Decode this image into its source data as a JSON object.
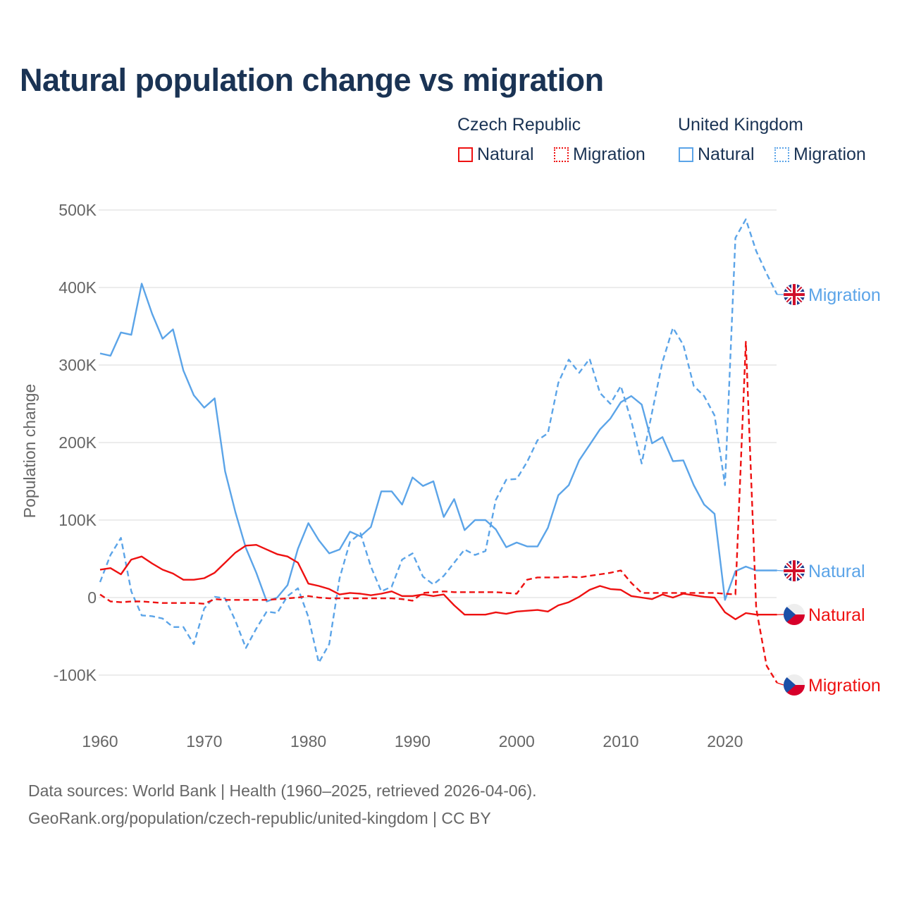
{
  "chart_data": {
    "type": "line",
    "title": "Natural population change vs migration",
    "xlabel": "",
    "ylabel": "Population change",
    "xlim": [
      1960,
      2025
    ],
    "ylim": [
      -100000,
      500000
    ],
    "x_ticks": [
      "1960",
      "1970",
      "1980",
      "1990",
      "2000",
      "2010",
      "2020"
    ],
    "y_ticks": [
      "500K",
      "400K",
      "300K",
      "200K",
      "100K",
      "0",
      "-100K"
    ],
    "grid": true,
    "legend": {
      "placement": "top-right",
      "groups": [
        {
          "name": "Czech Republic",
          "items": [
            "Natural",
            "Migration"
          ]
        },
        {
          "name": "United Kingdom",
          "items": [
            "Natural",
            "Migration"
          ]
        }
      ]
    },
    "x_start": 1960,
    "series": [
      {
        "name": "United Kingdom Natural",
        "label": "Natural",
        "country": "United Kingdom",
        "color": "#5ba4e8",
        "dashed": false,
        "values_k": [
          315,
          312,
          342,
          339,
          405,
          366,
          334,
          346,
          293,
          261,
          245,
          257,
          163,
          110,
          64,
          32,
          -5,
          0,
          16,
          63,
          96,
          74,
          57,
          62,
          85,
          79,
          91,
          137,
          137,
          120,
          155,
          144,
          150,
          104,
          127,
          87,
          100,
          100,
          88,
          65,
          71,
          66,
          66,
          90,
          132,
          145,
          177,
          197,
          217,
          231,
          252,
          260,
          249,
          199,
          207,
          176,
          177,
          145,
          120,
          108,
          -3,
          34,
          40,
          35,
          35,
          35
        ]
      },
      {
        "name": "United Kingdom Migration",
        "label": "Migration",
        "country": "United Kingdom",
        "color": "#5ba4e8",
        "dashed": true,
        "values_k": [
          20,
          55,
          77,
          8,
          -23,
          -24,
          -27,
          -38,
          -38,
          -60,
          -14,
          1,
          -1,
          -30,
          -65,
          -40,
          -18,
          -20,
          2,
          12,
          -25,
          -84,
          -60,
          25,
          72,
          83,
          40,
          8,
          14,
          49,
          57,
          27,
          17,
          28,
          45,
          62,
          55,
          60,
          126,
          152,
          153,
          175,
          203,
          212,
          277,
          307,
          290,
          308,
          264,
          250,
          273,
          228,
          173,
          239,
          304,
          348,
          326,
          273,
          260,
          235,
          145,
          464,
          488,
          447,
          418,
          391
        ]
      },
      {
        "name": "Czech Republic Natural",
        "label": "Natural",
        "country": "Czech Republic",
        "color": "#ee1111",
        "dashed": false,
        "values_k": [
          36,
          38,
          30,
          49,
          53,
          44,
          36,
          31,
          23,
          23,
          25,
          32,
          45,
          58,
          67,
          68,
          62,
          56,
          53,
          45,
          18,
          15,
          11,
          4,
          6,
          5,
          3,
          5,
          8,
          2,
          2,
          4,
          2,
          4,
          -10,
          -22,
          -22,
          -22,
          -19,
          -21,
          -18,
          -17,
          -16,
          -18,
          -10,
          -6,
          1,
          10,
          15,
          11,
          10,
          2,
          0,
          -2,
          4,
          0,
          5,
          3,
          1,
          0,
          -19,
          -28,
          -20,
          -22,
          -22,
          -22
        ]
      },
      {
        "name": "Czech Republic Migration",
        "label": "Migration",
        "country": "Czech Republic",
        "color": "#ee1111",
        "dashed": true,
        "values_k": [
          4,
          -5,
          -6,
          -5,
          -5,
          -6,
          -7,
          -7,
          -7,
          -7,
          -8,
          -2,
          -3,
          -3,
          -3,
          -3,
          -3,
          -2,
          -1,
          0,
          2,
          0,
          -1,
          -1,
          -1,
          -1,
          -1,
          -1,
          -1,
          -2,
          -4,
          6,
          7,
          8,
          7,
          7,
          7,
          7,
          7,
          6,
          5,
          23,
          26,
          26,
          26,
          27,
          26,
          28,
          30,
          32,
          35,
          19,
          6,
          6,
          6,
          6,
          6,
          6,
          6,
          6,
          5,
          4,
          330,
          -14,
          -88,
          -110
        ]
      }
    ]
  },
  "legend_labels": {
    "cz_group": "Czech Republic",
    "uk_group": "United Kingdom",
    "cz_natural": "Natural",
    "cz_migration": "Migration",
    "uk_natural": "Natural",
    "uk_migration": "Migration"
  },
  "footer": {
    "line1": "Data sources: World Bank | Health (1960–2025, retrieved 2026-04-06).",
    "line2": "GeoRank.org/population/czech-republic/united-kingdom | CC BY"
  },
  "colors": {
    "cz": "#ee1111",
    "uk": "#5ba4e8",
    "title": "#1a3354"
  }
}
